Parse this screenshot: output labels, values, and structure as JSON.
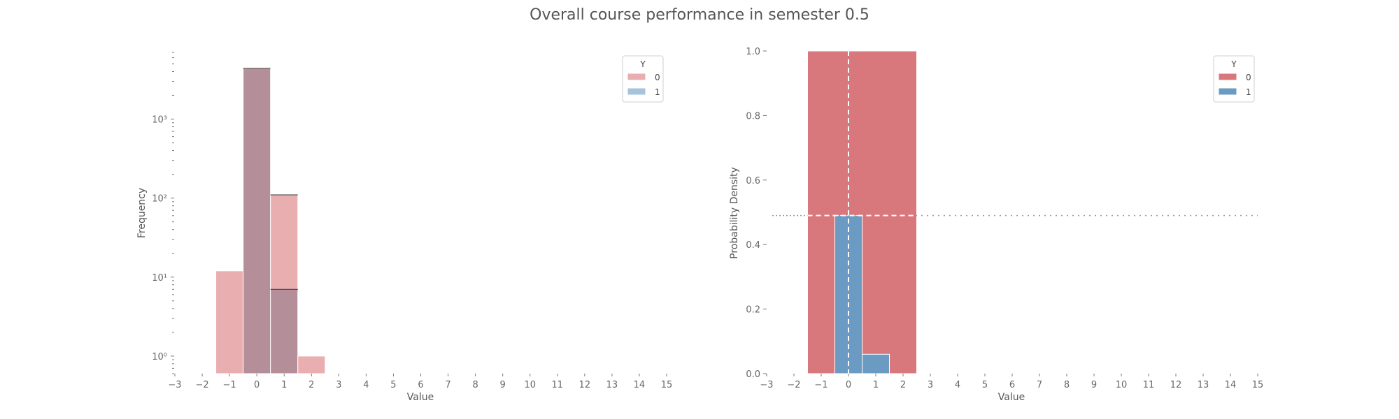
{
  "suptitle": "Overall course performance in semester 0.5",
  "colors": {
    "class0": "#d9787c",
    "class1": "#6b9bc3",
    "overlap": "#b48e98"
  },
  "chart_data": [
    {
      "type": "bar",
      "subtype": "histogram",
      "xlabel": "Value",
      "ylabel": "Frequency",
      "yscale": "log",
      "ylim": [
        0.6,
        7000
      ],
      "y_major_ticks": [
        1,
        10,
        100,
        1000
      ],
      "y_tick_labels": [
        "10⁰",
        "10¹",
        "10²",
        "10³"
      ],
      "xlim": [
        -3,
        15
      ],
      "x_ticks": [
        -3,
        -2,
        -1,
        0,
        1,
        2,
        3,
        4,
        5,
        6,
        7,
        8,
        9,
        10,
        11,
        12,
        13,
        14,
        15
      ],
      "x_tick_labels": [
        "−3",
        "−2",
        "−1",
        "0",
        "1",
        "2",
        "3",
        "4",
        "5",
        "6",
        "7",
        "8",
        "9",
        "10",
        "11",
        "12",
        "13",
        "14",
        "15"
      ],
      "bin_edges": [
        -1.5,
        -0.5,
        0.5,
        1.5,
        2.5
      ],
      "series": [
        {
          "name": "0",
          "values": [
            12,
            4400,
            110,
            1
          ]
        },
        {
          "name": "1",
          "values": [
            0,
            4400,
            7,
            0
          ]
        }
      ],
      "legend": {
        "title": "Y",
        "position": "top-right",
        "entries": [
          "0",
          "1"
        ]
      },
      "grid": false
    },
    {
      "type": "bar",
      "subtype": "histogram",
      "xlabel": "Value",
      "ylabel": "Probability Density",
      "ylim": [
        0,
        1.0
      ],
      "y_ticks": [
        0.0,
        0.2,
        0.4,
        0.6,
        0.8,
        1.0
      ],
      "y_tick_labels": [
        "0.0",
        "0.2",
        "0.4",
        "0.6",
        "0.8",
        "1.0"
      ],
      "xlim": [
        -3,
        15
      ],
      "x_ticks": [
        -3,
        -2,
        -1,
        0,
        1,
        2,
        3,
        4,
        5,
        6,
        7,
        8,
        9,
        10,
        11,
        12,
        13,
        14,
        15
      ],
      "x_tick_labels": [
        "−3",
        "−2",
        "−1",
        "0",
        "1",
        "2",
        "3",
        "4",
        "5",
        "6",
        "7",
        "8",
        "9",
        "10",
        "11",
        "12",
        "13",
        "14",
        "15"
      ],
      "series": [
        {
          "name": "0",
          "bins": [
            [
              -1.5,
              2.5,
              1.0
            ]
          ]
        },
        {
          "name": "1",
          "bins": [
            [
              -0.5,
              0.5,
              0.49
            ],
            [
              0.5,
              1.5,
              0.06
            ]
          ]
        }
      ],
      "reference_lines": {
        "vertical_x": 0,
        "horizontal_y": 0.49
      },
      "legend": {
        "title": "Y",
        "position": "top-right",
        "entries": [
          "0",
          "1"
        ]
      },
      "grid": false
    }
  ]
}
